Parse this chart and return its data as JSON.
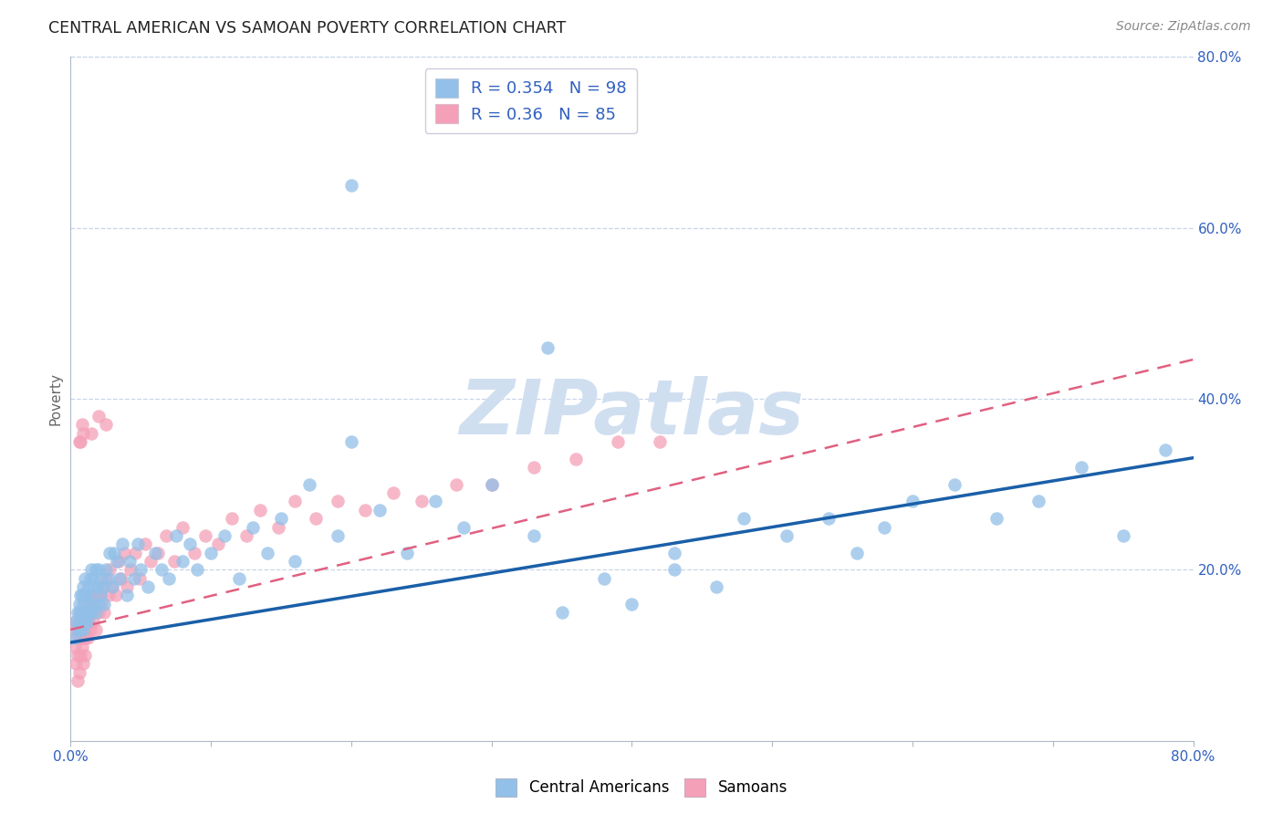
{
  "title": "CENTRAL AMERICAN VS SAMOAN POVERTY CORRELATION CHART",
  "source": "Source: ZipAtlas.com",
  "ylabel": "Poverty",
  "xlim": [
    0.0,
    0.8
  ],
  "ylim": [
    0.0,
    0.8
  ],
  "right_ytick_positions": [
    0.2,
    0.4,
    0.6,
    0.8
  ],
  "right_yticklabels": [
    "20.0%",
    "40.0%",
    "60.0%",
    "80.0%"
  ],
  "xtick_positions": [
    0.0,
    0.1,
    0.2,
    0.3,
    0.4,
    0.5,
    0.6,
    0.7,
    0.8
  ],
  "xticklabels": [
    "0.0%",
    "",
    "",
    "",
    "",
    "",
    "",
    "",
    "80.0%"
  ],
  "central_americans_color": "#92c0e8",
  "samoans_color": "#f4a0b8",
  "ca_line_color": "#1a5fa8",
  "sa_line_color": "#e06080",
  "R_central": 0.354,
  "N_central": 98,
  "R_samoan": 0.36,
  "N_samoan": 85,
  "background_color": "#ffffff",
  "grid_color": "#c8d4e8",
  "watermark_color": "#d0dff0",
  "legend_text_color": "#3060c0",
  "ca_line_intercept": 0.115,
  "ca_line_slope": 0.27,
  "sa_line_intercept": 0.13,
  "sa_line_slope": 0.395,
  "ca_x": [
    0.003,
    0.004,
    0.005,
    0.005,
    0.006,
    0.006,
    0.007,
    0.007,
    0.007,
    0.008,
    0.008,
    0.008,
    0.009,
    0.009,
    0.009,
    0.01,
    0.01,
    0.01,
    0.01,
    0.011,
    0.011,
    0.012,
    0.012,
    0.013,
    0.013,
    0.014,
    0.014,
    0.015,
    0.015,
    0.016,
    0.016,
    0.017,
    0.018,
    0.018,
    0.019,
    0.02,
    0.02,
    0.021,
    0.022,
    0.023,
    0.024,
    0.025,
    0.027,
    0.028,
    0.03,
    0.031,
    0.033,
    0.035,
    0.037,
    0.04,
    0.042,
    0.045,
    0.048,
    0.05,
    0.055,
    0.06,
    0.065,
    0.07,
    0.075,
    0.08,
    0.085,
    0.09,
    0.1,
    0.11,
    0.12,
    0.13,
    0.14,
    0.15,
    0.16,
    0.17,
    0.19,
    0.2,
    0.22,
    0.24,
    0.26,
    0.28,
    0.3,
    0.33,
    0.35,
    0.38,
    0.4,
    0.43,
    0.46,
    0.48,
    0.51,
    0.54,
    0.56,
    0.6,
    0.63,
    0.66,
    0.69,
    0.72,
    0.75,
    0.78,
    0.58,
    0.34,
    0.43,
    0.2
  ],
  "ca_y": [
    0.12,
    0.14,
    0.13,
    0.15,
    0.14,
    0.16,
    0.13,
    0.15,
    0.17,
    0.14,
    0.15,
    0.17,
    0.13,
    0.16,
    0.18,
    0.14,
    0.15,
    0.17,
    0.19,
    0.15,
    0.17,
    0.14,
    0.17,
    0.15,
    0.18,
    0.16,
    0.19,
    0.15,
    0.2,
    0.16,
    0.19,
    0.18,
    0.15,
    0.2,
    0.18,
    0.16,
    0.2,
    0.17,
    0.19,
    0.18,
    0.16,
    0.2,
    0.19,
    0.22,
    0.18,
    0.22,
    0.21,
    0.19,
    0.23,
    0.17,
    0.21,
    0.19,
    0.23,
    0.2,
    0.18,
    0.22,
    0.2,
    0.19,
    0.24,
    0.21,
    0.23,
    0.2,
    0.22,
    0.24,
    0.19,
    0.25,
    0.22,
    0.26,
    0.21,
    0.3,
    0.24,
    0.35,
    0.27,
    0.22,
    0.28,
    0.25,
    0.3,
    0.24,
    0.15,
    0.19,
    0.16,
    0.22,
    0.18,
    0.26,
    0.24,
    0.26,
    0.22,
    0.28,
    0.3,
    0.26,
    0.28,
    0.32,
    0.24,
    0.34,
    0.25,
    0.46,
    0.2,
    0.65
  ],
  "sa_x": [
    0.002,
    0.003,
    0.004,
    0.004,
    0.005,
    0.005,
    0.005,
    0.006,
    0.006,
    0.006,
    0.007,
    0.007,
    0.007,
    0.008,
    0.008,
    0.008,
    0.009,
    0.009,
    0.009,
    0.01,
    0.01,
    0.01,
    0.01,
    0.011,
    0.011,
    0.012,
    0.012,
    0.013,
    0.013,
    0.014,
    0.015,
    0.015,
    0.016,
    0.017,
    0.018,
    0.019,
    0.02,
    0.021,
    0.022,
    0.023,
    0.024,
    0.025,
    0.027,
    0.028,
    0.03,
    0.032,
    0.034,
    0.036,
    0.038,
    0.04,
    0.043,
    0.046,
    0.049,
    0.053,
    0.057,
    0.062,
    0.068,
    0.074,
    0.08,
    0.088,
    0.096,
    0.105,
    0.115,
    0.125,
    0.135,
    0.148,
    0.16,
    0.175,
    0.19,
    0.21,
    0.23,
    0.25,
    0.275,
    0.3,
    0.33,
    0.36,
    0.39,
    0.42,
    0.015,
    0.02,
    0.025,
    0.006,
    0.007,
    0.008,
    0.009
  ],
  "sa_y": [
    0.13,
    0.11,
    0.09,
    0.14,
    0.12,
    0.07,
    0.1,
    0.13,
    0.08,
    0.15,
    0.12,
    0.14,
    0.1,
    0.13,
    0.11,
    0.15,
    0.12,
    0.14,
    0.09,
    0.14,
    0.12,
    0.16,
    0.1,
    0.13,
    0.15,
    0.12,
    0.15,
    0.14,
    0.16,
    0.13,
    0.15,
    0.17,
    0.14,
    0.16,
    0.13,
    0.17,
    0.15,
    0.17,
    0.16,
    0.18,
    0.15,
    0.19,
    0.17,
    0.2,
    0.18,
    0.17,
    0.21,
    0.19,
    0.22,
    0.18,
    0.2,
    0.22,
    0.19,
    0.23,
    0.21,
    0.22,
    0.24,
    0.21,
    0.25,
    0.22,
    0.24,
    0.23,
    0.26,
    0.24,
    0.27,
    0.25,
    0.28,
    0.26,
    0.28,
    0.27,
    0.29,
    0.28,
    0.3,
    0.3,
    0.32,
    0.33,
    0.35,
    0.35,
    0.36,
    0.38,
    0.37,
    0.35,
    0.35,
    0.37,
    0.36
  ]
}
